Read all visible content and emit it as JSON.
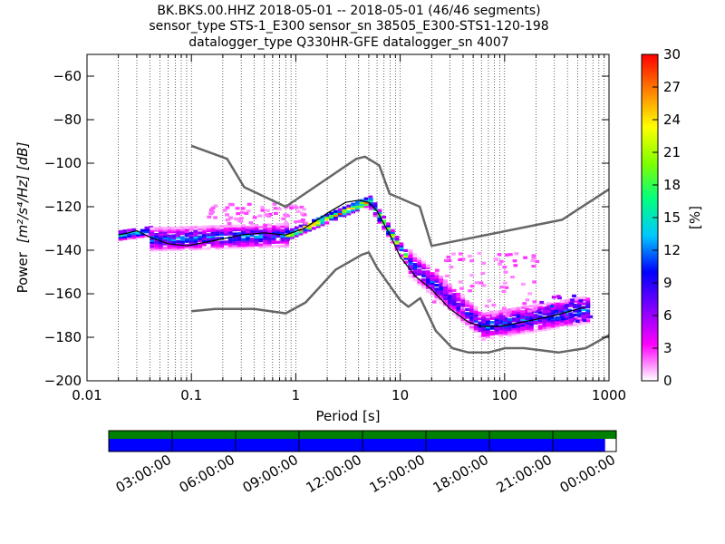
{
  "chart_data": {
    "type": "heatmap",
    "title_lines": [
      "BK.BKS.00.HHZ   2018-05-01 -- 2018-05-01  (46/46 segments)",
      "sensor_type STS-1_E300 sensor_sn 38505_E300-STS1-120-198",
      "datalogger_type Q330HR-GFE datalogger_sn 4007"
    ],
    "xlabel": "Period [s]",
    "ylabel_main": "Power",
    "ylabel_units": "[m²/s⁴/Hz] [dB]",
    "x_scale": "log",
    "xlim": [
      0.01,
      1000
    ],
    "ylim": [
      -200,
      -50
    ],
    "x_ticks": [
      {
        "value": 0.01,
        "label": "0.01"
      },
      {
        "value": 0.1,
        "label": "0.1"
      },
      {
        "value": 1,
        "label": "1"
      },
      {
        "value": 10,
        "label": "10"
      },
      {
        "value": 100,
        "label": "100"
      },
      {
        "value": 1000,
        "label": "1000"
      }
    ],
    "y_ticks": [
      {
        "value": -60,
        "label": "−60"
      },
      {
        "value": -80,
        "label": "−80"
      },
      {
        "value": -100,
        "label": "−100"
      },
      {
        "value": -120,
        "label": "−120"
      },
      {
        "value": -140,
        "label": "−140"
      },
      {
        "value": -160,
        "label": "−160"
      },
      {
        "value": -180,
        "label": "−180"
      },
      {
        "value": -200,
        "label": "−200"
      }
    ],
    "grid": "dotted vertical lines at log sub-ticks",
    "colorbar": {
      "label": "[%]",
      "range": [
        0,
        30
      ],
      "ticks": [
        {
          "value": 0,
          "label": "0"
        },
        {
          "value": 3,
          "label": "3"
        },
        {
          "value": 6,
          "label": "6"
        },
        {
          "value": 9,
          "label": "9"
        },
        {
          "value": 12,
          "label": "12"
        },
        {
          "value": 15,
          "label": "15"
        },
        {
          "value": 18,
          "label": "18"
        },
        {
          "value": 21,
          "label": "21"
        },
        {
          "value": 24,
          "label": "24"
        },
        {
          "value": 27,
          "label": "27"
        },
        {
          "value": 30,
          "label": "30"
        }
      ],
      "colormap": [
        "#ffffff",
        "#ff00ff",
        "#8000ff",
        "#0000ff",
        "#00c8ff",
        "#00ff80",
        "#80ff00",
        "#ffff00",
        "#ff8000",
        "#ff0000"
      ]
    },
    "nhnm": {
      "name": "New High Noise Model",
      "color": "#666666",
      "points": [
        [
          0.1,
          -92
        ],
        [
          0.22,
          -98
        ],
        [
          0.32,
          -111
        ],
        [
          0.8,
          -120
        ],
        [
          3.8,
          -98
        ],
        [
          4.6,
          -97
        ],
        [
          6.3,
          -101
        ],
        [
          7.9,
          -114
        ],
        [
          15.4,
          -120
        ],
        [
          20,
          -138
        ],
        [
          354.8,
          -126
        ],
        [
          1000,
          -112
        ]
      ]
    },
    "nlnm": {
      "name": "New Low Noise Model",
      "color": "#666666",
      "points": [
        [
          0.1,
          -168
        ],
        [
          0.17,
          -167
        ],
        [
          0.4,
          -167
        ],
        [
          0.8,
          -169
        ],
        [
          1.24,
          -164
        ],
        [
          2.4,
          -149
        ],
        [
          4.3,
          -142
        ],
        [
          5,
          -141
        ],
        [
          6,
          -148
        ],
        [
          10,
          -163
        ],
        [
          12,
          -166
        ],
        [
          15.6,
          -162
        ],
        [
          21.9,
          -177
        ],
        [
          31.6,
          -185
        ],
        [
          45,
          -187
        ],
        [
          70,
          -187
        ],
        [
          101,
          -185
        ],
        [
          154,
          -185
        ],
        [
          328,
          -187
        ],
        [
          600,
          -185
        ],
        [
          1000,
          -179
        ]
      ]
    },
    "mean": {
      "name": "mean PSD",
      "color": "#000000",
      "points": [
        [
          0.02,
          -133
        ],
        [
          0.025,
          -132
        ],
        [
          0.03,
          -131
        ],
        [
          0.04,
          -134
        ],
        [
          0.06,
          -137
        ],
        [
          0.09,
          -138
        ],
        [
          0.15,
          -136
        ],
        [
          0.3,
          -133
        ],
        [
          0.5,
          -132
        ],
        [
          0.8,
          -133
        ],
        [
          1.2,
          -130
        ],
        [
          2,
          -123
        ],
        [
          3,
          -118
        ],
        [
          4,
          -117
        ],
        [
          5,
          -118
        ],
        [
          6,
          -122
        ],
        [
          8,
          -133
        ],
        [
          10,
          -143
        ],
        [
          14,
          -152
        ],
        [
          20,
          -158
        ],
        [
          30,
          -167
        ],
        [
          45,
          -173
        ],
        [
          60,
          -175
        ],
        [
          90,
          -175
        ],
        [
          150,
          -173
        ],
        [
          300,
          -170
        ],
        [
          600,
          -166
        ]
      ]
    },
    "density_bands": [
      {
        "x_from": 0.02,
        "x_to": 0.04,
        "center": [
          -133,
          -131
        ],
        "half_width": 2,
        "peak": 16
      },
      {
        "x_from": 0.04,
        "x_to": 0.8,
        "center": [
          -135,
          -133
        ],
        "half_width": 5,
        "peak": 12
      },
      {
        "x_from": 0.8,
        "x_to": 5,
        "center": [
          -133,
          -117
        ],
        "half_width": 2,
        "peak": 28
      },
      {
        "x_from": 5,
        "x_to": 12,
        "center": [
          -118,
          -146
        ],
        "half_width": 3,
        "peak": 20
      },
      {
        "x_from": 12,
        "x_to": 60,
        "center": [
          -146,
          -175
        ],
        "half_width": 6,
        "peak": 10
      },
      {
        "x_from": 60,
        "x_to": 650,
        "center": [
          -175,
          -167
        ],
        "half_width": 6,
        "peak": 12
      }
    ],
    "scatter_outliers": [
      {
        "x_from": 0.12,
        "x_to": 1.2,
        "y_from": -128,
        "y_to": -118,
        "pct": 2
      },
      {
        "x_from": 20,
        "x_to": 200,
        "y_from": -170,
        "y_to": -140,
        "pct": 2
      },
      {
        "x_from": 200,
        "x_to": 650,
        "y_from": -172,
        "y_to": -160,
        "pct": 8
      }
    ]
  },
  "timeline": {
    "tick_labels": [
      "03:00:00",
      "06:00:00",
      "09:00:00",
      "12:00:00",
      "15:00:00",
      "18:00:00",
      "21:00:00",
      "00:00:00"
    ],
    "coverage_fraction": 0.978,
    "top_color": "#008000",
    "coverage_color": "#0000ff"
  }
}
